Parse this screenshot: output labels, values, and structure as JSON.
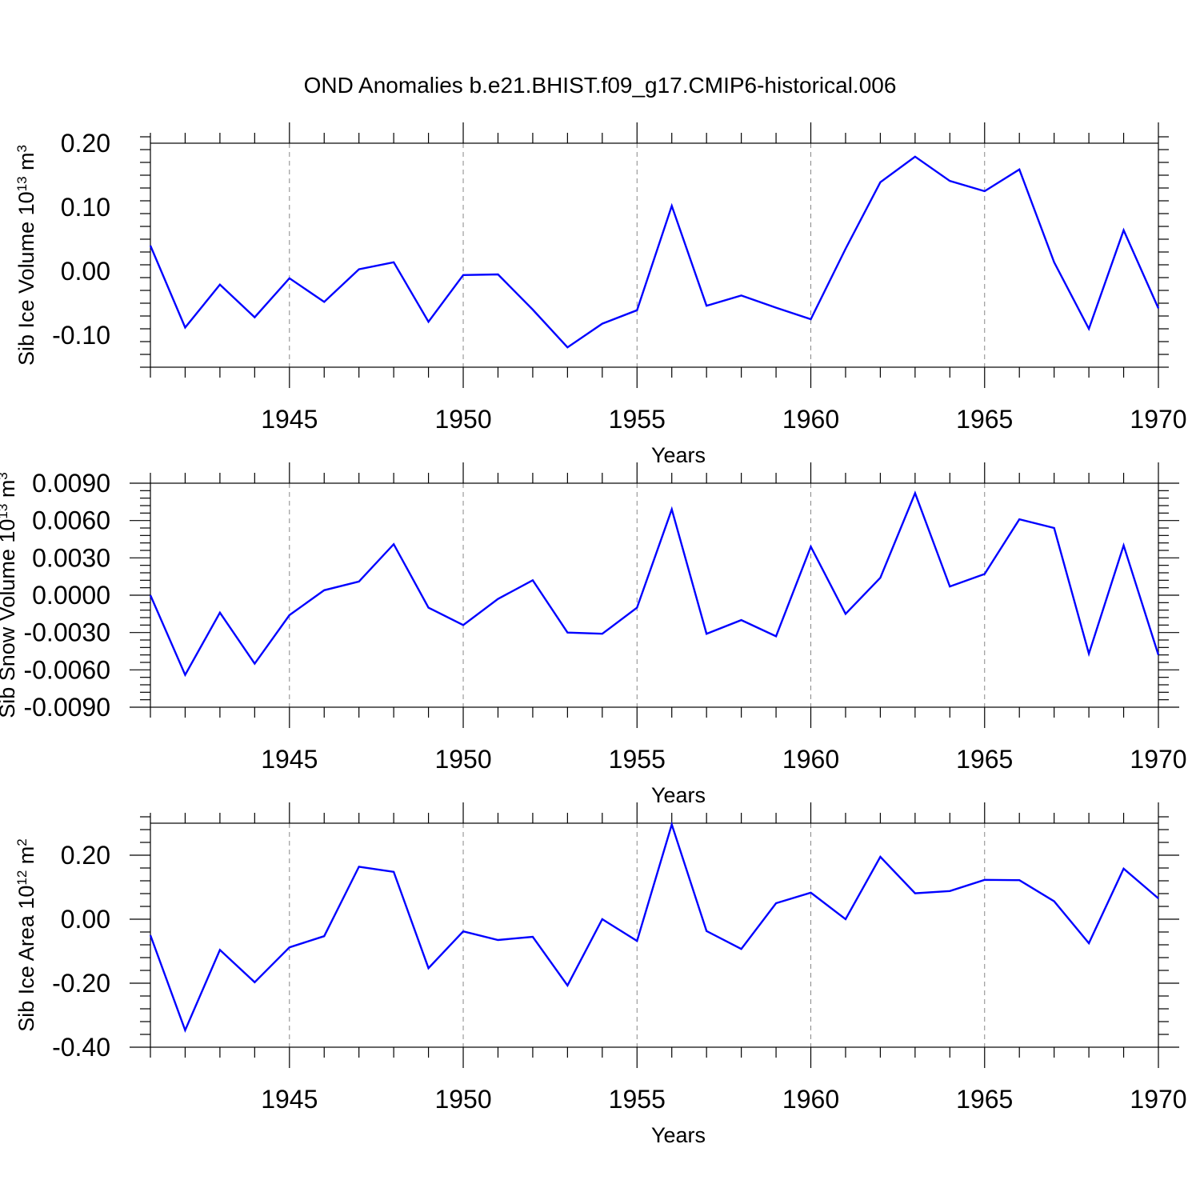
{
  "figure": {
    "title": "OND Anomalies b.e21.BHIST.f09_g17.CMIP6-historical.006"
  },
  "colors": {
    "line": "#0000ff",
    "axis": "#000000",
    "grid": "#888888"
  },
  "chart_data": [
    {
      "type": "line",
      "title": "",
      "xlabel": "Years",
      "ylabel_main": "Sib Ice Volume 10",
      "ylabel_sup": "13",
      "ylabel_unit": " m",
      "ylabel_unit_sup": "3",
      "xlim": [
        1941,
        1970
      ],
      "ylim": [
        -0.15,
        0.2
      ],
      "yticks": [
        0.2,
        0.1,
        0.0,
        -0.1
      ],
      "ytick_labels": [
        "0.20",
        "0.10",
        "0.00",
        "-0.10"
      ],
      "xticks": [
        1945,
        1950,
        1955,
        1960,
        1965,
        1970
      ],
      "xtick_labels": [
        "1945",
        "1950",
        "1955",
        "1960",
        "1965",
        "1970"
      ],
      "grid": "vertical-dashed",
      "x": [
        1941,
        1942,
        1943,
        1944,
        1945,
        1946,
        1947,
        1948,
        1949,
        1950,
        1951,
        1952,
        1953,
        1954,
        1955,
        1956,
        1957,
        1958,
        1959,
        1960,
        1961,
        1962,
        1963,
        1964,
        1965,
        1966,
        1967,
        1968,
        1969,
        1970
      ],
      "series": [
        {
          "name": "Sib Ice Volume",
          "values": [
            0.04,
            -0.088,
            -0.021,
            -0.072,
            -0.011,
            -0.048,
            0.003,
            0.014,
            -0.079,
            -0.006,
            -0.005,
            -0.06,
            -0.119,
            -0.082,
            -0.061,
            0.102,
            -0.054,
            -0.038,
            -0.057,
            -0.075,
            0.035,
            0.139,
            0.179,
            0.141,
            0.125,
            0.159,
            0.014,
            -0.09,
            0.064,
            -0.058
          ]
        }
      ]
    },
    {
      "type": "line",
      "title": "",
      "xlabel": "Years",
      "ylabel_main": "Sib Snow Volume 10",
      "ylabel_sup": "13",
      "ylabel_unit": " m",
      "ylabel_unit_sup": "3",
      "xlim": [
        1941,
        1970
      ],
      "ylim": [
        -0.009,
        0.009
      ],
      "yticks": [
        0.009,
        0.006,
        0.003,
        0.0,
        -0.003,
        -0.006,
        -0.009
      ],
      "ytick_labels": [
        "0.0090",
        "0.0060",
        "0.0030",
        "0.0000",
        "-0.0030",
        "-0.0060",
        "-0.0090"
      ],
      "xticks": [
        1945,
        1950,
        1955,
        1960,
        1965,
        1970
      ],
      "xtick_labels": [
        "1945",
        "1950",
        "1955",
        "1960",
        "1965",
        "1970"
      ],
      "grid": "vertical-dashed",
      "x": [
        1941,
        1942,
        1943,
        1944,
        1945,
        1946,
        1947,
        1948,
        1949,
        1950,
        1951,
        1952,
        1953,
        1954,
        1955,
        1956,
        1957,
        1958,
        1959,
        1960,
        1961,
        1962,
        1963,
        1964,
        1965,
        1966,
        1967,
        1968,
        1969,
        1970
      ],
      "series": [
        {
          "name": "Sib Snow Volume",
          "values": [
            0.0,
            -0.0064,
            -0.0014,
            -0.0055,
            -0.0016,
            0.0004,
            0.0011,
            0.0041,
            -0.001,
            -0.0024,
            -0.0003,
            0.0012,
            -0.003,
            -0.0031,
            -0.001,
            0.0069,
            -0.0031,
            -0.002,
            -0.0033,
            0.0039,
            -0.0015,
            0.0014,
            0.0082,
            0.0007,
            0.0017,
            0.0061,
            0.0054,
            -0.0047,
            0.004,
            -0.0048
          ]
        }
      ]
    },
    {
      "type": "line",
      "title": "",
      "xlabel": "Years",
      "ylabel_main": "Sib Ice Area 10",
      "ylabel_sup": "12",
      "ylabel_unit": " m",
      "ylabel_unit_sup": "2",
      "xlim": [
        1941,
        1970
      ],
      "ylim": [
        -0.4,
        0.3
      ],
      "yticks": [
        0.2,
        0.0,
        -0.2,
        -0.4
      ],
      "ytick_labels": [
        "0.20",
        "0.00",
        "-0.20",
        "-0.40"
      ],
      "xticks": [
        1945,
        1950,
        1955,
        1960,
        1965,
        1970
      ],
      "xtick_labels": [
        "1945",
        "1950",
        "1955",
        "1960",
        "1965",
        "1970"
      ],
      "grid": "vertical-dashed",
      "x": [
        1941,
        1942,
        1943,
        1944,
        1945,
        1946,
        1947,
        1948,
        1949,
        1950,
        1951,
        1952,
        1953,
        1954,
        1955,
        1956,
        1957,
        1958,
        1959,
        1960,
        1961,
        1962,
        1963,
        1964,
        1965,
        1966,
        1967,
        1968,
        1969,
        1970
      ],
      "series": [
        {
          "name": "Sib Ice Area",
          "values": [
            -0.05,
            -0.347,
            -0.096,
            -0.197,
            -0.088,
            -0.053,
            0.164,
            0.148,
            -0.153,
            -0.038,
            -0.065,
            -0.055,
            -0.207,
            0.0,
            -0.068,
            0.296,
            -0.037,
            -0.093,
            0.05,
            0.083,
            0.0,
            0.195,
            0.081,
            0.088,
            0.123,
            0.122,
            0.056,
            -0.075,
            0.158,
            0.065
          ]
        }
      ]
    }
  ]
}
